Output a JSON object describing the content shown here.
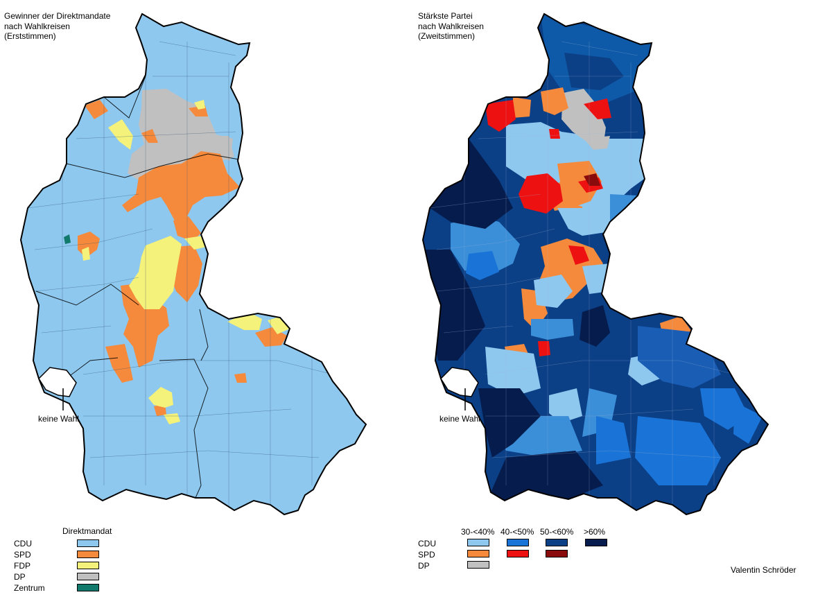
{
  "left_map": {
    "title_lines": [
      "Gewinner der Direktmandate",
      "nach Wahlkreisen",
      "(Erststimmen)"
    ],
    "no_vote_label": "keine Wahl",
    "legend": {
      "header": "Direktmandat",
      "items": [
        {
          "party": "CDU",
          "color": "#8ec8ef"
        },
        {
          "party": "SPD",
          "color": "#f58a3c"
        },
        {
          "party": "FDP",
          "color": "#f4f27a"
        },
        {
          "party": "DP",
          "color": "#c0c0c0"
        },
        {
          "party": "Zentrum",
          "color": "#127a6c"
        }
      ]
    }
  },
  "right_map": {
    "title_lines": [
      "Stärkste Partei",
      "nach Wahlkreisen",
      "(Zweitstimmen)"
    ],
    "no_vote_label": "keine Wahl",
    "legend": {
      "headers": [
        "30-<40%",
        "40-<50%",
        "50-<60%",
        ">60%"
      ],
      "rows": [
        {
          "party": "CDU",
          "colors": [
            "#8ec8ef",
            "#1a73d6",
            "#0b3f86",
            "#061c4d"
          ]
        },
        {
          "party": "SPD",
          "colors": [
            "#f58a3c",
            "#ee1111",
            "#8a0b0b"
          ]
        },
        {
          "party": "DP",
          "colors": [
            "#c0c0c0"
          ]
        }
      ]
    }
  },
  "credit": "Valentin Schröder"
}
